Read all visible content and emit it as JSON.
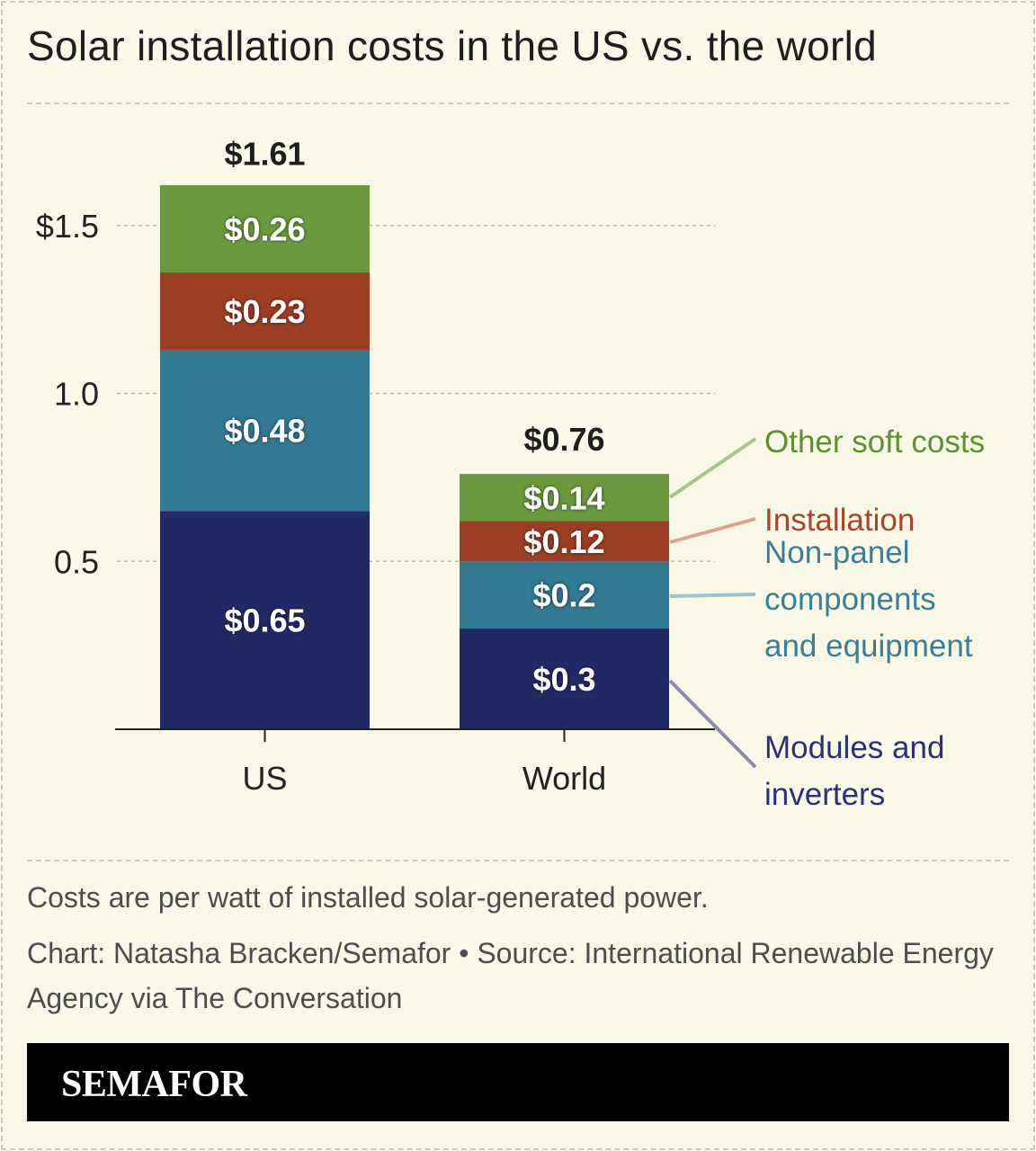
{
  "title": "Solar installation costs in the US vs. the world",
  "chart_data": {
    "type": "bar",
    "stacked": true,
    "title": "Solar installation costs in the US vs. the world",
    "categories": [
      "US",
      "World"
    ],
    "totals": [
      1.61,
      0.76
    ],
    "total_labels": [
      "$1.61",
      "$0.76"
    ],
    "series": [
      {
        "name": "Modules and inverters",
        "values": [
          0.65,
          0.3
        ],
        "labels": [
          "$0.65",
          "$0.3"
        ],
        "color": "#222a66",
        "text_color": "#2b3174",
        "leader_color": "#8a8eab"
      },
      {
        "name": "Non-panel components and equipment",
        "values": [
          0.48,
          0.2
        ],
        "labels": [
          "$0.48",
          "$0.2"
        ],
        "color": "#337a94",
        "text_color": "#3a7f98",
        "leader_color": "#9ec3cc"
      },
      {
        "name": "Installation",
        "values": [
          0.23,
          0.12
        ],
        "labels": [
          "$0.23",
          "$0.12"
        ],
        "color": "#9c3e24",
        "text_color": "#a6472c",
        "leader_color": "#d9a58f"
      },
      {
        "name": "Other soft costs",
        "values": [
          0.26,
          0.14
        ],
        "labels": [
          "$0.26",
          "$0.14"
        ],
        "color": "#6b9a3e",
        "text_color": "#5e8f32",
        "leader_color": "#a9c48f"
      }
    ],
    "yticks": [
      0.5,
      1.0,
      1.5
    ],
    "ytick_labels": [
      "0.5",
      "1.0",
      "$1.5"
    ],
    "ylim": [
      0,
      1.75
    ],
    "grid": true,
    "xlabel": "",
    "ylabel": "",
    "legend_placement": "right, direct labels"
  },
  "legend_lines": {
    "other": [
      "Other soft costs"
    ],
    "installation": [
      "Installation"
    ],
    "nonpanel": [
      "Non-panel",
      "components",
      "and equipment"
    ],
    "modules": [
      "Modules and",
      "inverters"
    ]
  },
  "footer": {
    "note": "Costs are per watt of installed solar-generated power.",
    "credit": "Chart: Natasha Bracken/Semafor • Source: International Renewable Energy Agency via The Conversation",
    "brand": "SEMAFOR"
  },
  "colors": {
    "background": "#faf8e6",
    "brand_bar": "#000000"
  }
}
